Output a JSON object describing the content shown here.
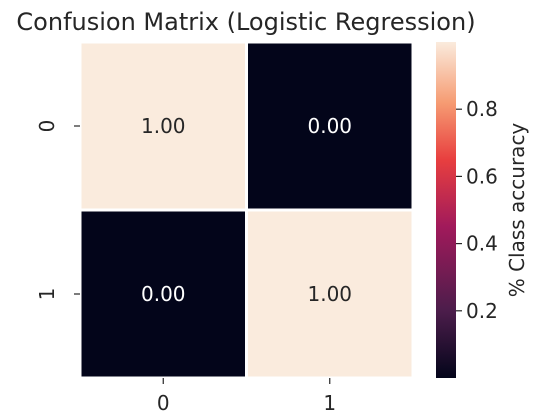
{
  "chart_data": {
    "type": "heatmap",
    "title": "Confusion Matrix (Logistic Regression)",
    "x_categories": [
      "0",
      "1"
    ],
    "y_categories": [
      "0",
      "1"
    ],
    "values": [
      [
        1.0,
        0.0
      ],
      [
        0.0,
        1.0
      ]
    ],
    "cell_labels": [
      [
        "1.00",
        "0.00"
      ],
      [
        "0.00",
        "1.00"
      ]
    ],
    "colorbar": {
      "label": "% Class accuracy",
      "ticks": [
        "0.2",
        "0.4",
        "0.6",
        "0.8"
      ],
      "range": [
        0,
        1
      ],
      "colors": {
        "low": "#03051a",
        "mid_dark": "#4c1d4b",
        "mid": "#a11a5b",
        "mid_light": "#e83f3f",
        "high_mid": "#f69c73",
        "high": "#faebdd"
      }
    },
    "grid": false
  }
}
